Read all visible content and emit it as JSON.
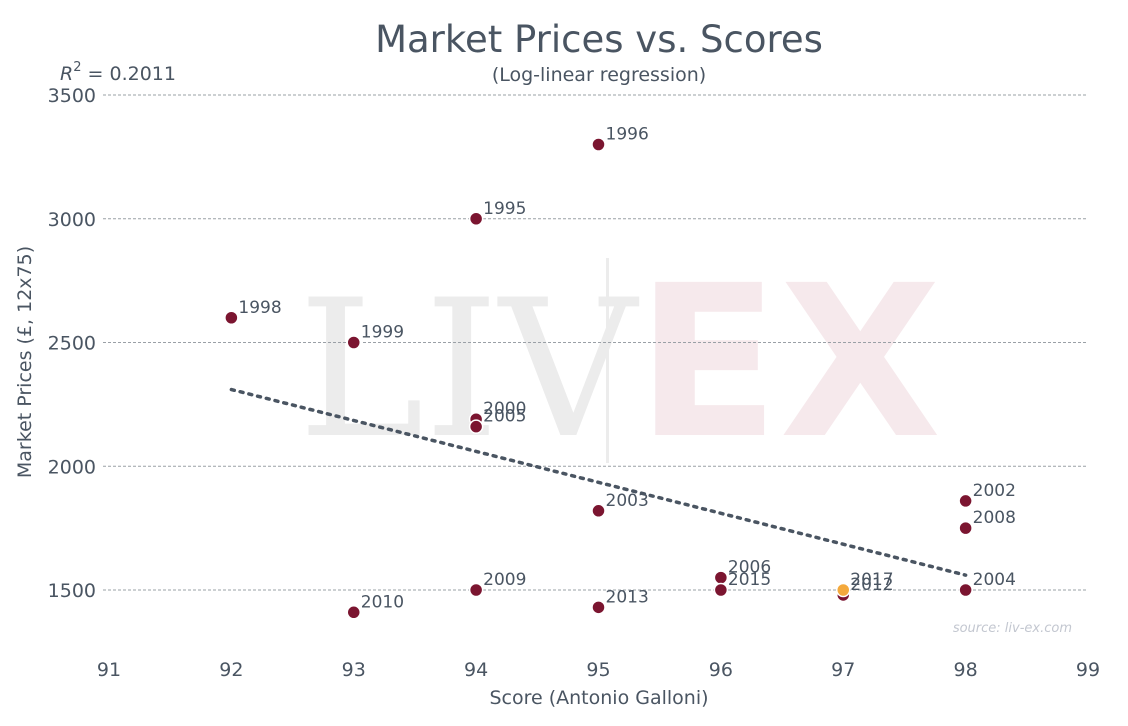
{
  "chart_data": {
    "type": "scatter",
    "title": "Market Prices vs. Scores",
    "subtitle": "(Log-linear regression)",
    "xlabel": "Score (Antonio Galloni)",
    "ylabel": "Market Prices (£, 12x75)",
    "r2_label": "R",
    "r2_sup": "2",
    "r2_value": " = 0.2011",
    "xlim": [
      91,
      99
    ],
    "ylim": [
      1270,
      3500
    ],
    "xticks": [
      91,
      92,
      93,
      94,
      95,
      96,
      97,
      98,
      99
    ],
    "yticks": [
      1500,
      2000,
      2500,
      3000,
      3500
    ],
    "grid": "horizontal dashed",
    "points": [
      {
        "label": "1996",
        "x": 95,
        "y": 3300
      },
      {
        "label": "1995",
        "x": 94,
        "y": 3000
      },
      {
        "label": "1998",
        "x": 92,
        "y": 2600
      },
      {
        "label": "1999",
        "x": 93,
        "y": 2500
      },
      {
        "label": "2000",
        "x": 94,
        "y": 2190
      },
      {
        "label": "2005",
        "x": 94,
        "y": 2160
      },
      {
        "label": "2003",
        "x": 95,
        "y": 1820
      },
      {
        "label": "2002",
        "x": 98,
        "y": 1860
      },
      {
        "label": "2008",
        "x": 98,
        "y": 1750
      },
      {
        "label": "2006",
        "x": 96,
        "y": 1550
      },
      {
        "label": "2015",
        "x": 96,
        "y": 1500
      },
      {
        "label": "2012",
        "x": 97,
        "y": 1480
      },
      {
        "label": "2017",
        "x": 97,
        "y": 1500,
        "highlight": true
      },
      {
        "label": "2004",
        "x": 98,
        "y": 1500
      },
      {
        "label": "2009",
        "x": 94,
        "y": 1500
      },
      {
        "label": "2013",
        "x": 95,
        "y": 1430
      },
      {
        "label": "2010",
        "x": 93,
        "y": 1410
      }
    ],
    "regression": {
      "x0": 92,
      "y0": 2310,
      "x1": 98,
      "y1": 1560
    },
    "colors": {
      "point": "#7b1530",
      "highlight": "#f4a93c",
      "regression": "#4a5562",
      "grid": "#9aa0a6",
      "text": "#4a5562"
    },
    "watermark": {
      "left": "LIV",
      "right": "EX"
    },
    "source": "source: liv-ex.com"
  }
}
